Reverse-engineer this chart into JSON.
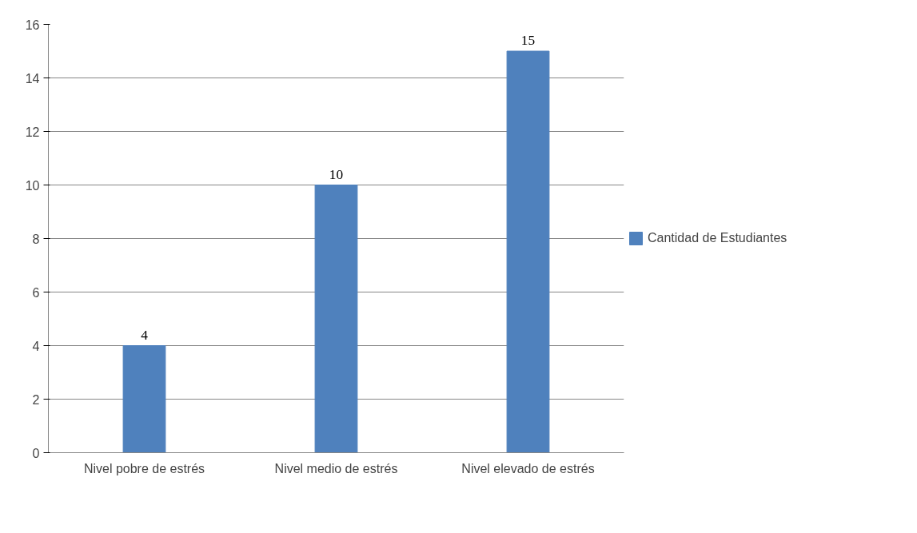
{
  "chart_data": {
    "type": "bar",
    "categories": [
      "Nivel pobre de estrés",
      "Nivel medio de estrés",
      "Nivel elevado de estrés"
    ],
    "series": [
      {
        "name": "Cantidad de Estudiantes",
        "color": "#4f81bd",
        "values": [
          4,
          10,
          15
        ]
      }
    ],
    "ylim": [
      0,
      16
    ],
    "yticks": [
      0,
      2,
      4,
      6,
      8,
      10,
      12,
      14,
      16
    ],
    "grid": "y",
    "legend": "right",
    "data_labels": true
  }
}
